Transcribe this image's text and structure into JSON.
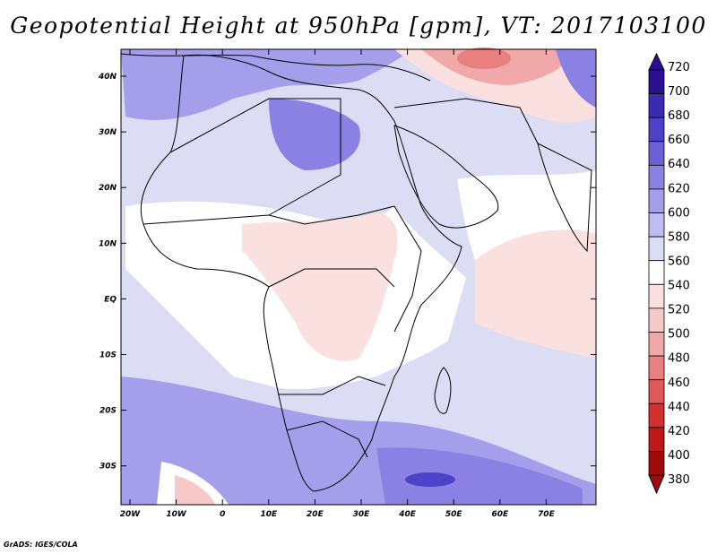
{
  "title": "Geopotential Height at 950hPa [gpm], VT: 2017103100",
  "footer": "GrADS: IGES/COLA",
  "map": {
    "lat_labels": [
      "40N",
      "30N",
      "20N",
      "10N",
      "EQ",
      "10S",
      "20S",
      "30S"
    ],
    "lon_labels": [
      "20W",
      "10W",
      "0",
      "10E",
      "20E",
      "30E",
      "40E",
      "50E",
      "60E",
      "70E"
    ],
    "background_color": "#dcdcf5",
    "land_color": "#ffffff",
    "coast_color": "#000000"
  },
  "colorbar": {
    "labels": [
      "720",
      "700",
      "680",
      "660",
      "640",
      "620",
      "600",
      "580",
      "560",
      "540",
      "520",
      "500",
      "480",
      "460",
      "440",
      "420",
      "400",
      "380"
    ],
    "colors": [
      "#2b0f93",
      "#3a2bb0",
      "#4d43c8",
      "#6d5fd8",
      "#8b80e3",
      "#a59eeb",
      "#c0bcf2",
      "#dcdcf5",
      "#ffffff",
      "#fbe0e0",
      "#f7c8c8",
      "#f0a8a8",
      "#e88080",
      "#e05858",
      "#d43030",
      "#c01818",
      "#a00a0a"
    ]
  }
}
